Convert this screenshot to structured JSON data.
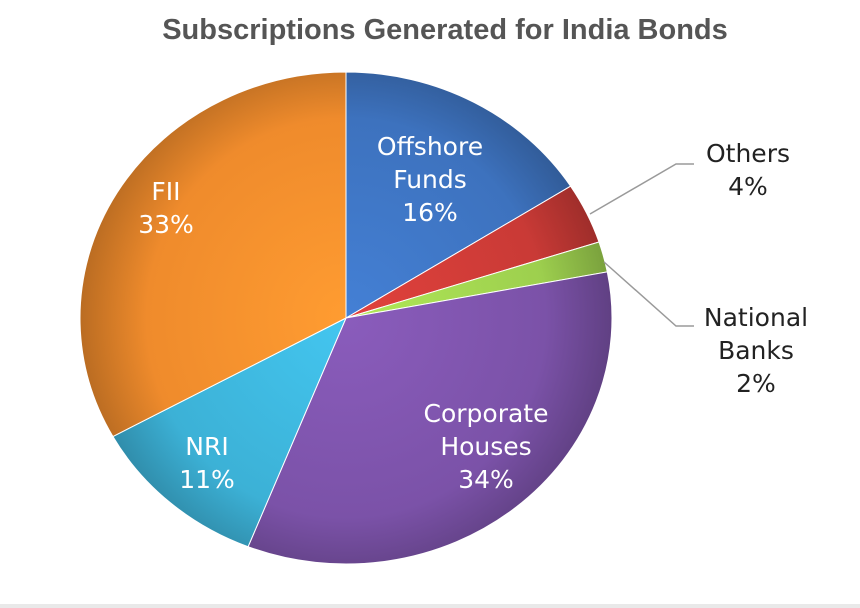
{
  "chart_data": {
    "type": "pie",
    "title": "Subscriptions Generated for India Bonds",
    "slices": [
      {
        "label_lines": [
          "Offshore",
          "Funds"
        ],
        "value": 16,
        "value_label": "16%",
        "color": "#3d72be",
        "label_position": "inside"
      },
      {
        "label_lines": [
          "Others"
        ],
        "value": 4,
        "value_label": "4%",
        "color": "#c93a36",
        "label_position": "outside"
      },
      {
        "label_lines": [
          "National",
          "Banks"
        ],
        "value": 2,
        "value_label": "2%",
        "color": "#9dcf4e",
        "label_position": "outside"
      },
      {
        "label_lines": [
          "Corporate",
          "Houses"
        ],
        "value": 34,
        "value_label": "34%",
        "color": "#7b52a8",
        "label_position": "inside"
      },
      {
        "label_lines": [
          "NRI"
        ],
        "value": 11,
        "value_label": "11%",
        "color": "#3cb1d6",
        "label_position": "inside"
      },
      {
        "label_lines": [
          "FII"
        ],
        "value": 33,
        "value_label": "33%",
        "color": "#ef8b2c",
        "label_position": "inside"
      }
    ],
    "legend": "none"
  }
}
